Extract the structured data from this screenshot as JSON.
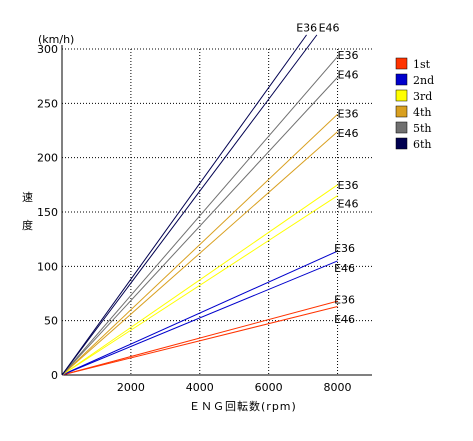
{
  "chart_data": {
    "type": "line",
    "unit_label": "(km/h)",
    "ylabel": "速度",
    "xlabel": "ＥＮＧ回転数(rpm)",
    "xlim": [
      0,
      9000
    ],
    "ylim": [
      0,
      300
    ],
    "x_ticks": [
      2000,
      4000,
      6000,
      8000
    ],
    "y_ticks": [
      0,
      50,
      100,
      150,
      200,
      250,
      300
    ],
    "grid": true,
    "legend_position": "right",
    "series": [
      {
        "name": "1st",
        "color": "#ff3300",
        "lines": [
          {
            "model": "E36",
            "points": [
              [
                0,
                0
              ],
              [
                8000,
                68
              ]
            ]
          },
          {
            "model": "E46",
            "points": [
              [
                0,
                0
              ],
              [
                8000,
                63
              ]
            ]
          }
        ]
      },
      {
        "name": "2nd",
        "color": "#0000cc",
        "lines": [
          {
            "model": "E36",
            "points": [
              [
                0,
                0
              ],
              [
                8000,
                114
              ]
            ]
          },
          {
            "model": "E46",
            "points": [
              [
                0,
                0
              ],
              [
                8000,
                105
              ]
            ]
          }
        ]
      },
      {
        "name": "3rd",
        "color": "#ffff00",
        "lines": [
          {
            "model": "E36",
            "points": [
              [
                0,
                0
              ],
              [
                8000,
                175
              ]
            ]
          },
          {
            "model": "E46",
            "points": [
              [
                0,
                0
              ],
              [
                8000,
                165
              ]
            ]
          }
        ]
      },
      {
        "name": "4th",
        "color": "#d9a020",
        "lines": [
          {
            "model": "E36",
            "points": [
              [
                0,
                0
              ],
              [
                8000,
                240
              ]
            ]
          },
          {
            "model": "E46",
            "points": [
              [
                0,
                0
              ],
              [
                8000,
                224
              ]
            ]
          }
        ]
      },
      {
        "name": "5th",
        "color": "#707070",
        "lines": [
          {
            "model": "E36",
            "points": [
              [
                0,
                0
              ],
              [
                8000,
                293
              ]
            ]
          },
          {
            "model": "E46",
            "points": [
              [
                0,
                0
              ],
              [
                8000,
                274
              ]
            ]
          }
        ]
      },
      {
        "name": "6th",
        "color": "#000050",
        "lines": [
          {
            "model": "E36",
            "points": [
              [
                0,
                0
              ],
              [
                7100,
                313
              ]
            ]
          },
          {
            "model": "E46",
            "points": [
              [
                0,
                0
              ],
              [
                7400,
                313
              ]
            ]
          }
        ]
      }
    ],
    "annotations": [
      {
        "text": "E36",
        "x": 6800,
        "y": 316
      },
      {
        "text": "E46",
        "x": 7450,
        "y": 316
      },
      {
        "text": "E36",
        "x": 8000,
        "y": 291
      },
      {
        "text": "E46",
        "x": 8000,
        "y": 273
      },
      {
        "text": "E36",
        "x": 8000,
        "y": 237
      },
      {
        "text": "E46",
        "x": 8000,
        "y": 219
      },
      {
        "text": "E36",
        "x": 8000,
        "y": 171
      },
      {
        "text": "E46",
        "x": 8000,
        "y": 154
      },
      {
        "text": "E36",
        "x": 7900,
        "y": 113
      },
      {
        "text": "E46",
        "x": 7900,
        "y": 95
      },
      {
        "text": "E36",
        "x": 7900,
        "y": 66
      },
      {
        "text": "E46",
        "x": 7900,
        "y": 48
      }
    ]
  }
}
